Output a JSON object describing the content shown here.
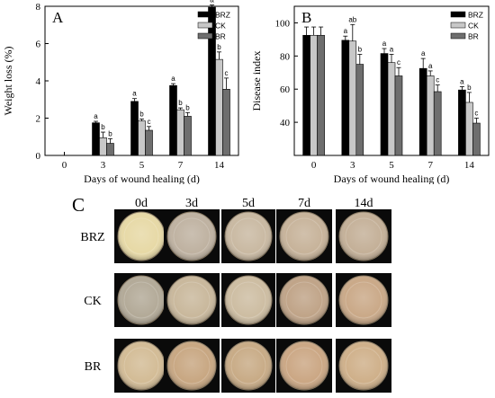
{
  "chart_data": [
    {
      "panel_label": "A",
      "type": "bar",
      "categories": [
        "0",
        "3",
        "5",
        "7",
        "14"
      ],
      "xlabel": "Days of wound healing (d)",
      "ylabel": "Weight loss (%)",
      "ylim": [
        0,
        8
      ],
      "yticks": [
        "0",
        "2",
        "4",
        "6",
        "8"
      ],
      "legend_position": "top-right",
      "series": [
        {
          "name": "BRZ",
          "color": "#000000",
          "values": [
            0,
            1.75,
            2.9,
            3.75,
            7.95
          ],
          "errors": [
            0,
            0.08,
            0.15,
            0.1,
            0.12
          ],
          "letters": [
            "",
            "a",
            "a",
            "a",
            "a"
          ]
        },
        {
          "name": "CK",
          "color": "#c8c8c8",
          "values": [
            0,
            0.95,
            1.85,
            2.45,
            5.15
          ],
          "errors": [
            0,
            0.3,
            0.1,
            0.1,
            0.4
          ],
          "letters": [
            "",
            "b",
            "b",
            "b",
            "b"
          ]
        },
        {
          "name": "BR",
          "color": "#6e6e6e",
          "values": [
            0,
            0.65,
            1.35,
            2.1,
            3.55
          ],
          "errors": [
            0,
            0.25,
            0.2,
            0.2,
            0.6
          ],
          "letters": [
            "",
            "b",
            "c",
            "b",
            "c"
          ]
        }
      ]
    },
    {
      "panel_label": "B",
      "type": "bar",
      "categories": [
        "0",
        "3",
        "5",
        "7",
        "14"
      ],
      "xlabel": "Days of wound healing (d)",
      "ylabel": "Disease index",
      "ylim": [
        20,
        110
      ],
      "yticks": [
        "40",
        "60",
        "80",
        "100"
      ],
      "legend_position": "top-right",
      "series": [
        {
          "name": "BRZ",
          "color": "#000000",
          "values": [
            92.5,
            89.5,
            81.5,
            72.5,
            59.5
          ],
          "errors": [
            5,
            2.5,
            3,
            6,
            2
          ],
          "letters": [
            "",
            "a",
            "a",
            "a",
            "a"
          ]
        },
        {
          "name": "CK",
          "color": "#c8c8c8",
          "values": [
            92.5,
            89,
            76,
            68,
            52
          ],
          "errors": [
            5,
            10,
            5,
            3,
            6
          ],
          "letters": [
            "",
            "ab",
            "a",
            "a",
            "b"
          ]
        },
        {
          "name": "BR",
          "color": "#6e6e6e",
          "values": [
            92.5,
            75,
            68,
            58.5,
            39.5
          ],
          "errors": [
            5,
            6,
            5,
            4,
            3
          ],
          "letters": [
            "",
            "b",
            "c",
            "c",
            "c"
          ]
        }
      ]
    }
  ],
  "photo_panel": {
    "panel_label": "C",
    "columns": [
      "0d",
      "3d",
      "5d",
      "7d",
      "14d"
    ],
    "rows": [
      "BRZ",
      "CK",
      "BR"
    ],
    "tuber_colors": [
      [
        "#e7d9a6",
        "#bfb2a1",
        "#c9b9a2",
        "#c7b39a",
        "#c4b098"
      ],
      [
        "#b3aa98",
        "#c9b89c",
        "#cdbda2",
        "#c0a488",
        "#caa988"
      ],
      [
        "#d3bc96",
        "#c8a782",
        "#c8ab86",
        "#cba784",
        "#cfb08a"
      ]
    ]
  }
}
